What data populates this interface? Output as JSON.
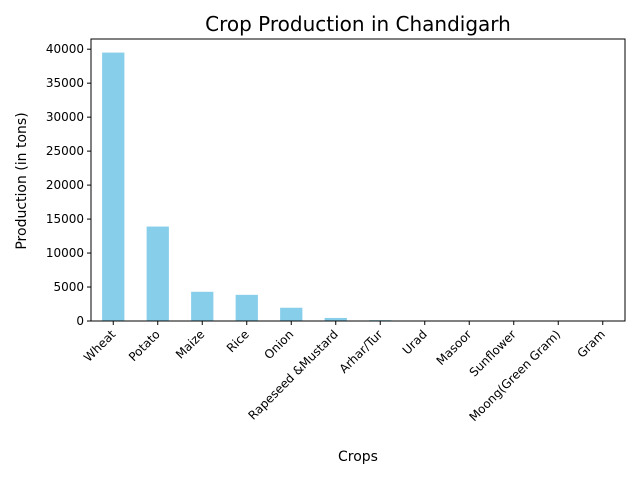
{
  "chart_data": {
    "type": "bar",
    "title": "Crop Production in Chandigarh",
    "xlabel": "Crops",
    "ylabel": "Production (in tons)",
    "categories": [
      "Wheat",
      "Potato",
      "Maize",
      "Rice",
      "Onion",
      "Rapeseed &Mustard",
      "Arhar/Tur",
      "Urad",
      "Masoor",
      "Sunflower",
      "Moong(Green Gram)",
      "Gram"
    ],
    "values": [
      39500,
      13900,
      4300,
      3850,
      1950,
      450,
      120,
      20,
      12,
      8,
      5,
      3
    ],
    "ylim": [
      0,
      41500
    ],
    "yticks": [
      0,
      5000,
      10000,
      15000,
      20000,
      25000,
      30000,
      35000,
      40000
    ],
    "bar_color": "#87ceeb",
    "grid": false,
    "legend": false
  }
}
